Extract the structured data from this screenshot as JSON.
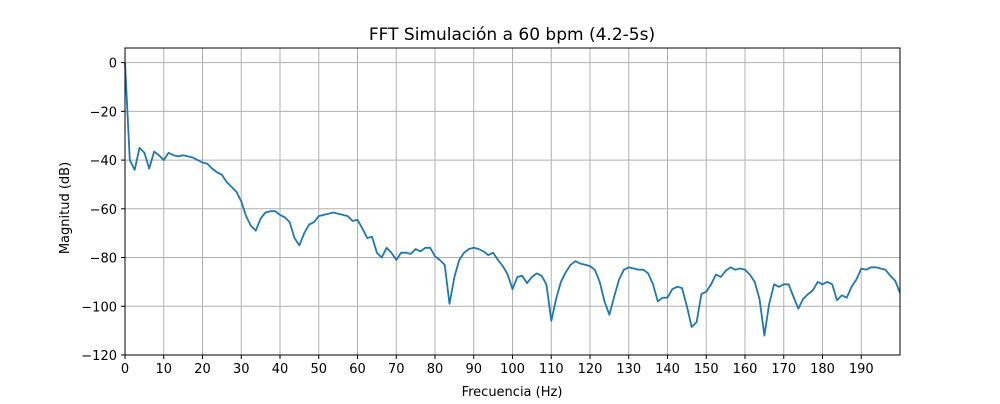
{
  "colors": {
    "line": "#1f77b4",
    "grid": "#b0b0b0",
    "axes": "#000000"
  },
  "chart_data": {
    "type": "line",
    "title": "FFT Simulación a 60 bpm (4.2-5s)",
    "xlabel": "Frecuencia (Hz)",
    "ylabel": "Magnitud (dB)",
    "xlim": [
      0,
      200
    ],
    "ylim": [
      -120,
      6
    ],
    "xticks": [
      0,
      10,
      20,
      30,
      40,
      50,
      60,
      70,
      80,
      90,
      100,
      110,
      120,
      130,
      140,
      150,
      160,
      170,
      180,
      190
    ],
    "yticks": [
      0,
      -20,
      -40,
      -60,
      -80,
      -100,
      -120
    ],
    "grid": true,
    "series": [
      {
        "x": [
          0,
          1.25,
          2.5,
          3.75,
          5,
          6.25,
          7.5,
          8.75,
          10,
          11.25,
          12.5,
          13.75,
          15,
          16.25,
          17.5,
          18.75,
          20,
          21.25,
          22.5,
          23.75,
          25,
          26.25,
          27.5,
          28.75,
          30,
          31.25,
          32.5,
          33.75,
          35,
          36.25,
          37.5,
          38.75,
          40,
          41.25,
          42.5,
          43.75,
          45,
          46.25,
          47.5,
          48.75,
          50,
          51.25,
          52.5,
          53.75,
          55,
          56.25,
          57.5,
          58.75,
          60,
          61.25,
          62.5,
          63.75,
          65,
          66.25,
          67.5,
          68.75,
          70,
          71.25,
          72.5,
          73.75,
          75,
          76.25,
          77.5,
          78.75,
          80,
          81.25,
          82.5,
          83.75,
          85,
          86.25,
          87.5,
          88.75,
          90,
          91.25,
          92.5,
          93.75,
          95,
          96.25,
          97.5,
          98.75,
          100,
          101.25,
          102.5,
          103.75,
          105,
          106.25,
          107.5,
          108.75,
          110,
          111.25,
          112.5,
          113.75,
          115,
          116.25,
          117.5,
          118.75,
          120,
          121.25,
          122.5,
          123.75,
          125,
          126.25,
          127.5,
          128.75,
          130,
          131.25,
          132.5,
          133.75,
          135,
          136.25,
          137.5,
          138.75,
          140,
          141.25,
          142.5,
          143.75,
          145,
          146.25,
          147.5,
          148.75,
          150,
          151.25,
          152.5,
          153.75,
          155,
          156.25,
          157.5,
          158.75,
          160,
          161.25,
          162.5,
          163.75,
          165,
          166.25,
          167.5,
          168.75,
          170,
          171.25,
          172.5,
          173.75,
          175,
          176.25,
          177.5,
          178.75,
          180,
          181.25,
          182.5,
          183.75,
          185,
          186.25,
          187.5,
          188.75,
          190,
          191.25,
          192.5,
          193.75,
          195,
          196.25,
          197.5,
          198.75,
          200
        ],
        "y": [
          0,
          -40,
          -44,
          -35,
          -37,
          -43.5,
          -36.5,
          -38,
          -40,
          -37,
          -38,
          -38.5,
          -38,
          -38.5,
          -39,
          -40,
          -41,
          -41.5,
          -43.5,
          -45,
          -46,
          -49,
          -51,
          -53,
          -57,
          -63,
          -67,
          -69,
          -64,
          -61.5,
          -61,
          -61,
          -62.5,
          -63.5,
          -65.5,
          -72,
          -75,
          -70,
          -66.5,
          -65.5,
          -63,
          -62.5,
          -62,
          -61.5,
          -62,
          -62.5,
          -63,
          -65,
          -64.5,
          -68,
          -72,
          -71.5,
          -78,
          -80,
          -76,
          -78,
          -81,
          -78,
          -78,
          -78.5,
          -76.5,
          -77.5,
          -76,
          -76,
          -79.5,
          -81,
          -83,
          -99,
          -88,
          -81,
          -78,
          -76.5,
          -76,
          -76.5,
          -77.5,
          -79,
          -78,
          -81,
          -83.5,
          -87,
          -93,
          -88,
          -87.5,
          -90.5,
          -88,
          -86.5,
          -87.5,
          -91,
          -106,
          -97,
          -90,
          -86,
          -83,
          -81.5,
          -82.5,
          -83,
          -83.5,
          -85,
          -90,
          -98,
          -103.5,
          -96,
          -89,
          -85,
          -84,
          -84.5,
          -85,
          -85,
          -86.5,
          -91,
          -98,
          -96.5,
          -96.5,
          -93,
          -92,
          -92.5,
          -100,
          -108.5,
          -106.5,
          -95,
          -94,
          -91,
          -87,
          -88,
          -85.5,
          -84,
          -85,
          -84.5,
          -85,
          -87,
          -90,
          -97,
          -112,
          -99,
          -91,
          -92,
          -91,
          -91,
          -96,
          -101,
          -97,
          -95,
          -93.5,
          -90,
          -91,
          -90,
          -91,
          -97.5,
          -95.5,
          -96.5,
          -92,
          -89,
          -84.5,
          -85,
          -84,
          -84,
          -84.5,
          -85,
          -87.5,
          -89.5,
          -94.5
        ]
      }
    ]
  }
}
